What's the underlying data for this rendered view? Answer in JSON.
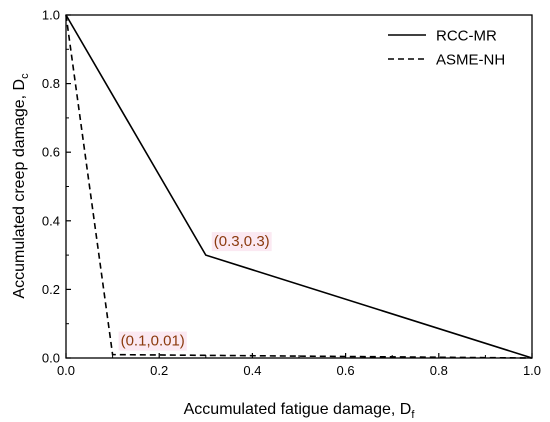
{
  "chart_data": {
    "type": "line",
    "xlabel": "Accumulated fatigue damage, D",
    "xlabel_sub": "f",
    "ylabel": "Accumulated creep damage, D",
    "ylabel_sub": "c",
    "xlim": [
      0,
      1
    ],
    "ylim": [
      0,
      1
    ],
    "xticks": [
      "0.0",
      "0.2",
      "0.4",
      "0.6",
      "0.8",
      "1.0"
    ],
    "yticks": [
      "0.0",
      "0.2",
      "0.4",
      "0.6",
      "0.8",
      "1.0"
    ],
    "grid": false,
    "legend_position": "top-right",
    "series": [
      {
        "name": "RCC-MR",
        "style": "solid",
        "x": [
          0,
          0.3,
          1
        ],
        "y": [
          1,
          0.3,
          0
        ]
      },
      {
        "name": "ASME-NH",
        "style": "dashed",
        "x": [
          0,
          0.1,
          1
        ],
        "y": [
          1,
          0.01,
          0
        ]
      }
    ],
    "annotations": [
      {
        "text": "(0.3,0.3)",
        "x": 0.3,
        "y": 0.3,
        "color": "#8b3a0e",
        "highlight": "#fbe9f2"
      },
      {
        "text": "(0.1,0.01)",
        "x": 0.1,
        "y": 0.01,
        "color": "#8b3a0e",
        "highlight": "#fbe9f2"
      }
    ]
  }
}
